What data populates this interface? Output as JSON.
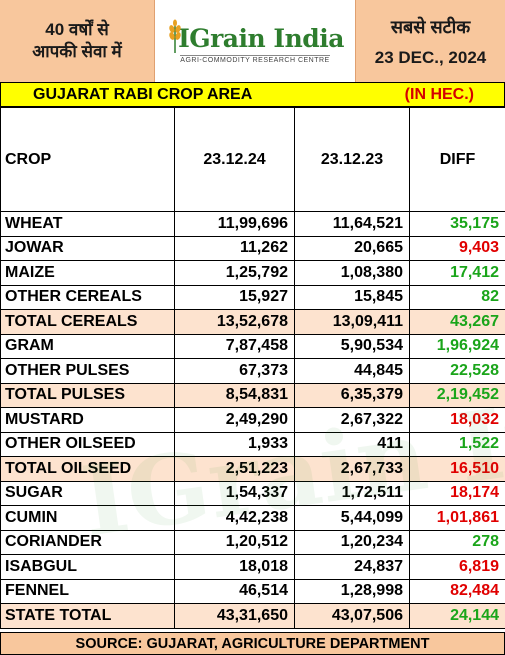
{
  "header": {
    "left_line1": "40 वर्षों से",
    "left_line2": "आपकी सेवा में",
    "logo_name": "IGrain India",
    "logo_tagline": "AGRI-COMMODITY RESEARCH CENTRE",
    "right_tag": "सबसे सटीक",
    "date": "23 DEC., 2024"
  },
  "title": {
    "text": "GUJARAT RABI CROP AREA",
    "unit": "(IN HEC.)"
  },
  "table": {
    "headers": [
      "CROP",
      "23.12.24",
      "23.12.23",
      "DIFF"
    ],
    "rows": [
      {
        "crop": "WHEAT",
        "cur": "11,99,696",
        "prev": "11,64,521",
        "diff": "35,175",
        "sign": "pos",
        "total": false
      },
      {
        "crop": "JOWAR",
        "cur": "11,262",
        "prev": "20,665",
        "diff": "9,403",
        "sign": "neg",
        "total": false
      },
      {
        "crop": "MAIZE",
        "cur": "1,25,792",
        "prev": "1,08,380",
        "diff": "17,412",
        "sign": "pos",
        "total": false
      },
      {
        "crop": "OTHER CEREALS",
        "cur": "15,927",
        "prev": "15,845",
        "diff": "82",
        "sign": "pos",
        "total": false
      },
      {
        "crop": "TOTAL CEREALS",
        "cur": "13,52,678",
        "prev": "13,09,411",
        "diff": "43,267",
        "sign": "pos",
        "total": true
      },
      {
        "crop": "GRAM",
        "cur": "7,87,458",
        "prev": "5,90,534",
        "diff": "1,96,924",
        "sign": "pos",
        "total": false
      },
      {
        "crop": "OTHER PULSES",
        "cur": "67,373",
        "prev": "44,845",
        "diff": "22,528",
        "sign": "pos",
        "total": false
      },
      {
        "crop": "TOTAL PULSES",
        "cur": "8,54,831",
        "prev": "6,35,379",
        "diff": "2,19,452",
        "sign": "pos",
        "total": true
      },
      {
        "crop": "MUSTARD",
        "cur": "2,49,290",
        "prev": "2,67,322",
        "diff": "18,032",
        "sign": "neg",
        "total": false
      },
      {
        "crop": "OTHER OILSEED",
        "cur": "1,933",
        "prev": "411",
        "diff": "1,522",
        "sign": "pos",
        "total": false
      },
      {
        "crop": "TOTAL OILSEED",
        "cur": "2,51,223",
        "prev": "2,67,733",
        "diff": "16,510",
        "sign": "neg",
        "total": true
      },
      {
        "crop": "SUGAR",
        "cur": "1,54,337",
        "prev": "1,72,511",
        "diff": "18,174",
        "sign": "neg",
        "total": false
      },
      {
        "crop": "CUMIN",
        "cur": "4,42,238",
        "prev": "5,44,099",
        "diff": "1,01,861",
        "sign": "neg",
        "total": false
      },
      {
        "crop": "CORIANDER",
        "cur": "1,20,512",
        "prev": "1,20,234",
        "diff": "278",
        "sign": "pos",
        "total": false
      },
      {
        "crop": "ISABGUL",
        "cur": "18,018",
        "prev": "24,837",
        "diff": "6,819",
        "sign": "neg",
        "total": false
      },
      {
        "crop": "FENNEL",
        "cur": "46,514",
        "prev": "1,28,998",
        "diff": "82,484",
        "sign": "neg",
        "total": false
      },
      {
        "crop": "STATE TOTAL",
        "cur": "43,31,650",
        "prev": "43,07,506",
        "diff": "24,144",
        "sign": "pos",
        "total": true
      }
    ]
  },
  "source": "SOURCE: GUJARAT, AGRICULTURE DEPARTMENT",
  "colors": {
    "header_bg": "#f8c79d",
    "title_bg": "#ffff00",
    "total_row_bg": "#fde3cf",
    "positive": "#1aa51a",
    "negative": "#e00000",
    "brand_green": "#2e7d2e"
  },
  "icons": {
    "logo": "wheat-icon"
  }
}
